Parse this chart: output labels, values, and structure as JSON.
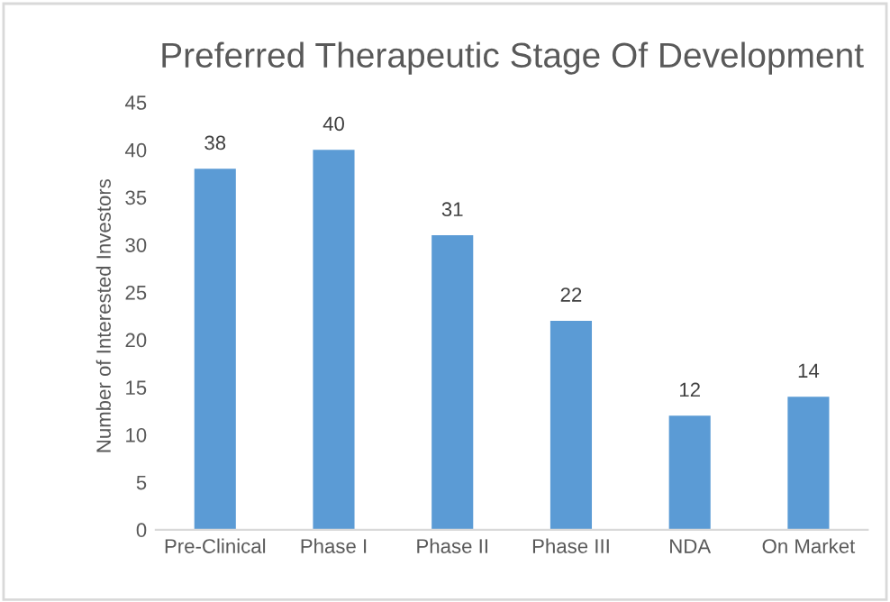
{
  "chart_data": {
    "type": "bar",
    "title": "Preferred Therapeutic Stage Of Development",
    "ylabel": "Number of Interested Investors",
    "categories": [
      "Pre-Clinical",
      "Phase I",
      "Phase II",
      "Phase III",
      "NDA",
      "On Market"
    ],
    "values": [
      38,
      40,
      31,
      22,
      12,
      14
    ],
    "color": "#5b9bd5",
    "ylim": [
      0,
      45
    ],
    "yticks": [
      0,
      5,
      10,
      15,
      20,
      25,
      30,
      35,
      40,
      45
    ],
    "grid": false,
    "data_labels": true
  }
}
